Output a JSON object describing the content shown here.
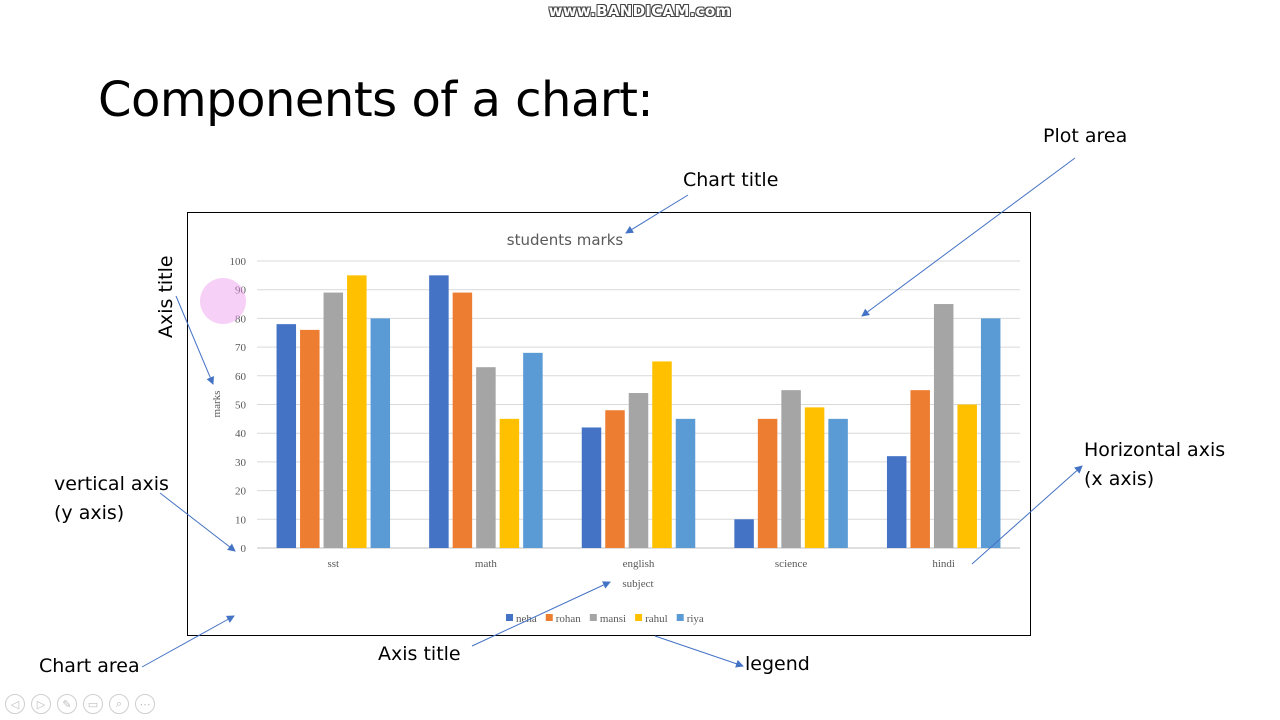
{
  "watermark": "www.BANDICAM.com",
  "slide": {
    "title": "Components of a chart:",
    "annotations": {
      "chart_title": "Chart title",
      "plot_area": "Plot area",
      "axis_title_vertical": "Axis title",
      "vertical_axis_line1": "vertical axis",
      "vertical_axis_line2": "(y axis)",
      "horizontal_axis_line1": "Horizontal axis",
      "horizontal_axis_line2": "(x axis)",
      "chart_area": "Chart area",
      "axis_title_bottom": "Axis title",
      "legend": "legend"
    }
  },
  "nav_icons": [
    "prev-icon",
    "next-icon",
    "pen-icon",
    "slides-icon",
    "zoom-icon",
    "more-icon"
  ],
  "nav_glyphs": [
    "◁",
    "▷",
    "✎",
    "▭",
    "⌕",
    "⋯"
  ],
  "colors": {
    "neha": "#4472C4",
    "rohan": "#ED7D31",
    "mansi": "#A5A5A5",
    "rahul": "#FFC000",
    "riya": "#5B9BD5",
    "arrow": "#4472C4",
    "gridline": "#d9d9d9",
    "text": "#595959"
  },
  "chart_data": {
    "type": "bar",
    "title": "students marks",
    "xlabel": "subject",
    "ylabel": "marks",
    "categories": [
      "sst",
      "math",
      "english",
      "science",
      "hindi"
    ],
    "ylim": [
      0,
      100
    ],
    "yticks": [
      0,
      10,
      20,
      30,
      40,
      50,
      60,
      70,
      80,
      90,
      100
    ],
    "grid": true,
    "legend_position": "bottom",
    "series": [
      {
        "name": "neha",
        "values": [
          78,
          95,
          42,
          10,
          32
        ]
      },
      {
        "name": "rohan",
        "values": [
          76,
          89,
          48,
          45,
          55
        ]
      },
      {
        "name": "mansi",
        "values": [
          89,
          63,
          54,
          55,
          85
        ]
      },
      {
        "name": "rahul",
        "values": [
          95,
          45,
          65,
          49,
          50
        ]
      },
      {
        "name": "riya",
        "values": [
          80,
          68,
          45,
          45,
          80
        ]
      }
    ]
  }
}
